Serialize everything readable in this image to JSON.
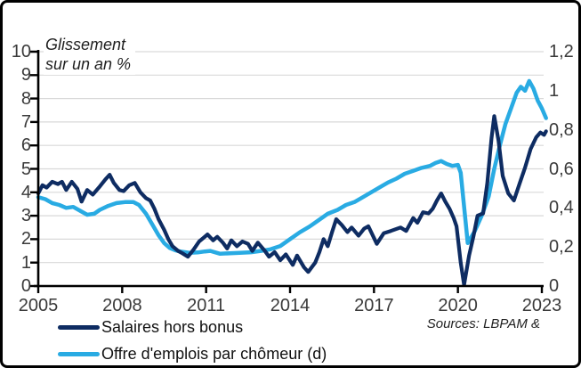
{
  "chart_data": {
    "type": "line",
    "title": "Glissement sur un an %",
    "title_lines": [
      "Glissement",
      "sur un an %"
    ],
    "sources_note": "Sources: LBPAM &",
    "grid": true,
    "legend_position": "bottom-left",
    "colors": {
      "grid": "#d9d9d9",
      "axis": "#000000",
      "tick_text": "#3a3a3a",
      "navy": "#0e2c62",
      "light_blue": "#29abe3"
    },
    "x_axis": {
      "min": 2005,
      "max": 2023.4,
      "ticks": [
        {
          "v": 2005,
          "label": "2005"
        },
        {
          "v": 2008,
          "label": "2008"
        },
        {
          "v": 2011,
          "label": "2011"
        },
        {
          "v": 2014,
          "label": "2014"
        },
        {
          "v": 2017,
          "label": "2017"
        },
        {
          "v": 2020,
          "label": "2020"
        },
        {
          "v": 2023,
          "label": "2023"
        }
      ]
    },
    "y_axis_left": {
      "min": 0,
      "max": 10,
      "ticks": [
        {
          "v": 0,
          "label": "0"
        },
        {
          "v": 1,
          "label": "1"
        },
        {
          "v": 2,
          "label": "2"
        },
        {
          "v": 3,
          "label": "3"
        },
        {
          "v": 4,
          "label": "4"
        },
        {
          "v": 5,
          "label": "5"
        },
        {
          "v": 6,
          "label": "6"
        },
        {
          "v": 7,
          "label": "7"
        },
        {
          "v": 8,
          "label": "8"
        },
        {
          "v": 9,
          "label": "9"
        },
        {
          "v": 10,
          "label": "10"
        }
      ]
    },
    "y_axis_right": {
      "min": 0,
      "max": 1.2,
      "ticks": [
        {
          "v": 0,
          "label": "0"
        },
        {
          "v": 0.2,
          "label": "0,2"
        },
        {
          "v": 0.4,
          "label": "0,4"
        },
        {
          "v": 0.6,
          "label": "0,6"
        },
        {
          "v": 0.8,
          "label": "0,8"
        },
        {
          "v": 1,
          "label": "1"
        },
        {
          "v": 1.2,
          "label": "1,2"
        }
      ]
    },
    "series": [
      {
        "name": "Offre d'emplois par chômeur (d)",
        "axis": "right",
        "color": "#29abe3",
        "stroke_width": 4.5,
        "points": [
          [
            2005.0,
            0.455
          ],
          [
            2005.25,
            0.445
          ],
          [
            2005.5,
            0.425
          ],
          [
            2005.75,
            0.415
          ],
          [
            2006.0,
            0.4
          ],
          [
            2006.25,
            0.405
          ],
          [
            2006.5,
            0.385
          ],
          [
            2006.75,
            0.365
          ],
          [
            2007.0,
            0.37
          ],
          [
            2007.2,
            0.39
          ],
          [
            2007.5,
            0.41
          ],
          [
            2007.8,
            0.425
          ],
          [
            2008.1,
            0.43
          ],
          [
            2008.4,
            0.43
          ],
          [
            2008.6,
            0.415
          ],
          [
            2008.85,
            0.37
          ],
          [
            2009.1,
            0.31
          ],
          [
            2009.3,
            0.26
          ],
          [
            2009.5,
            0.22
          ],
          [
            2009.7,
            0.195
          ],
          [
            2009.9,
            0.183
          ],
          [
            2010.1,
            0.176
          ],
          [
            2010.4,
            0.17
          ],
          [
            2010.7,
            0.172
          ],
          [
            2010.95,
            0.177
          ],
          [
            2011.15,
            0.18
          ],
          [
            2011.5,
            0.165
          ],
          [
            2011.85,
            0.168
          ],
          [
            2012.2,
            0.17
          ],
          [
            2012.6,
            0.173
          ],
          [
            2012.95,
            0.18
          ],
          [
            2013.3,
            0.188
          ],
          [
            2013.65,
            0.205
          ],
          [
            2014.0,
            0.24
          ],
          [
            2014.35,
            0.275
          ],
          [
            2014.7,
            0.305
          ],
          [
            2015.0,
            0.335
          ],
          [
            2015.35,
            0.37
          ],
          [
            2015.7,
            0.39
          ],
          [
            2016.0,
            0.415
          ],
          [
            2016.3,
            0.43
          ],
          [
            2016.6,
            0.455
          ],
          [
            2016.9,
            0.48
          ],
          [
            2017.2,
            0.505
          ],
          [
            2017.5,
            0.53
          ],
          [
            2017.8,
            0.55
          ],
          [
            2018.1,
            0.575
          ],
          [
            2018.4,
            0.59
          ],
          [
            2018.7,
            0.605
          ],
          [
            2019.0,
            0.615
          ],
          [
            2019.2,
            0.63
          ],
          [
            2019.4,
            0.64
          ],
          [
            2019.6,
            0.625
          ],
          [
            2019.8,
            0.615
          ],
          [
            2020.0,
            0.62
          ],
          [
            2020.1,
            0.58
          ],
          [
            2020.35,
            0.22
          ],
          [
            2020.6,
            0.28
          ],
          [
            2020.85,
            0.36
          ],
          [
            2021.1,
            0.46
          ],
          [
            2021.3,
            0.6
          ],
          [
            2021.5,
            0.72
          ],
          [
            2021.7,
            0.83
          ],
          [
            2021.9,
            0.91
          ],
          [
            2022.1,
            0.99
          ],
          [
            2022.25,
            1.02
          ],
          [
            2022.4,
            1.0
          ],
          [
            2022.55,
            1.05
          ],
          [
            2022.7,
            1.01
          ],
          [
            2022.85,
            0.95
          ],
          [
            2023.0,
            0.91
          ],
          [
            2023.15,
            0.86
          ]
        ]
      },
      {
        "name": "Salaires hors bonus",
        "axis": "left",
        "color": "#0e2c62",
        "stroke_width": 4.2,
        "points": [
          [
            2005.0,
            3.95
          ],
          [
            2005.15,
            4.3
          ],
          [
            2005.3,
            4.2
          ],
          [
            2005.5,
            4.45
          ],
          [
            2005.7,
            4.35
          ],
          [
            2005.85,
            4.45
          ],
          [
            2006.0,
            4.1
          ],
          [
            2006.2,
            4.45
          ],
          [
            2006.4,
            4.15
          ],
          [
            2006.55,
            3.6
          ],
          [
            2006.75,
            4.1
          ],
          [
            2006.95,
            3.9
          ],
          [
            2007.2,
            4.25
          ],
          [
            2007.4,
            4.55
          ],
          [
            2007.55,
            4.75
          ],
          [
            2007.7,
            4.4
          ],
          [
            2007.9,
            4.1
          ],
          [
            2008.05,
            4.05
          ],
          [
            2008.25,
            4.3
          ],
          [
            2008.45,
            4.4
          ],
          [
            2008.65,
            4.0
          ],
          [
            2008.85,
            3.75
          ],
          [
            2009.0,
            3.65
          ],
          [
            2009.15,
            3.3
          ],
          [
            2009.3,
            2.85
          ],
          [
            2009.5,
            2.4
          ],
          [
            2009.65,
            2.0
          ],
          [
            2009.8,
            1.7
          ],
          [
            2010.0,
            1.5
          ],
          [
            2010.15,
            1.4
          ],
          [
            2010.35,
            1.25
          ],
          [
            2010.55,
            1.55
          ],
          [
            2010.75,
            1.9
          ],
          [
            2010.9,
            2.05
          ],
          [
            2011.05,
            2.2
          ],
          [
            2011.25,
            1.95
          ],
          [
            2011.4,
            2.1
          ],
          [
            2011.6,
            1.85
          ],
          [
            2011.75,
            1.6
          ],
          [
            2011.9,
            1.95
          ],
          [
            2012.1,
            1.7
          ],
          [
            2012.3,
            1.9
          ],
          [
            2012.5,
            1.8
          ],
          [
            2012.65,
            1.5
          ],
          [
            2012.85,
            1.85
          ],
          [
            2013.1,
            1.5
          ],
          [
            2013.25,
            1.25
          ],
          [
            2013.45,
            1.45
          ],
          [
            2013.65,
            1.1
          ],
          [
            2013.85,
            1.35
          ],
          [
            2014.1,
            0.9
          ],
          [
            2014.25,
            1.3
          ],
          [
            2014.5,
            0.8
          ],
          [
            2014.65,
            0.6
          ],
          [
            2014.9,
            1.0
          ],
          [
            2015.05,
            1.45
          ],
          [
            2015.2,
            2.0
          ],
          [
            2015.35,
            1.7
          ],
          [
            2015.5,
            2.3
          ],
          [
            2015.65,
            2.85
          ],
          [
            2015.85,
            2.6
          ],
          [
            2016.05,
            2.3
          ],
          [
            2016.2,
            2.5
          ],
          [
            2016.45,
            2.15
          ],
          [
            2016.65,
            2.45
          ],
          [
            2016.8,
            2.55
          ],
          [
            2017.1,
            1.8
          ],
          [
            2017.35,
            2.25
          ],
          [
            2017.6,
            2.35
          ],
          [
            2017.95,
            2.5
          ],
          [
            2018.15,
            2.35
          ],
          [
            2018.4,
            2.9
          ],
          [
            2018.55,
            2.7
          ],
          [
            2018.75,
            3.15
          ],
          [
            2018.95,
            3.1
          ],
          [
            2019.1,
            3.3
          ],
          [
            2019.25,
            3.65
          ],
          [
            2019.4,
            3.95
          ],
          [
            2019.55,
            3.6
          ],
          [
            2019.7,
            3.3
          ],
          [
            2019.85,
            2.9
          ],
          [
            2019.95,
            2.55
          ],
          [
            2020.1,
            1.0
          ],
          [
            2020.22,
            0.05
          ],
          [
            2020.4,
            1.3
          ],
          [
            2020.55,
            2.1
          ],
          [
            2020.7,
            3.0
          ],
          [
            2020.9,
            3.1
          ],
          [
            2021.05,
            4.4
          ],
          [
            2021.2,
            6.3
          ],
          [
            2021.3,
            7.25
          ],
          [
            2021.45,
            6.2
          ],
          [
            2021.6,
            4.7
          ],
          [
            2021.8,
            3.95
          ],
          [
            2022.0,
            3.65
          ],
          [
            2022.2,
            4.35
          ],
          [
            2022.4,
            5.05
          ],
          [
            2022.6,
            5.85
          ],
          [
            2022.8,
            6.35
          ],
          [
            2022.95,
            6.55
          ],
          [
            2023.08,
            6.45
          ],
          [
            2023.15,
            6.6
          ]
        ]
      }
    ]
  }
}
